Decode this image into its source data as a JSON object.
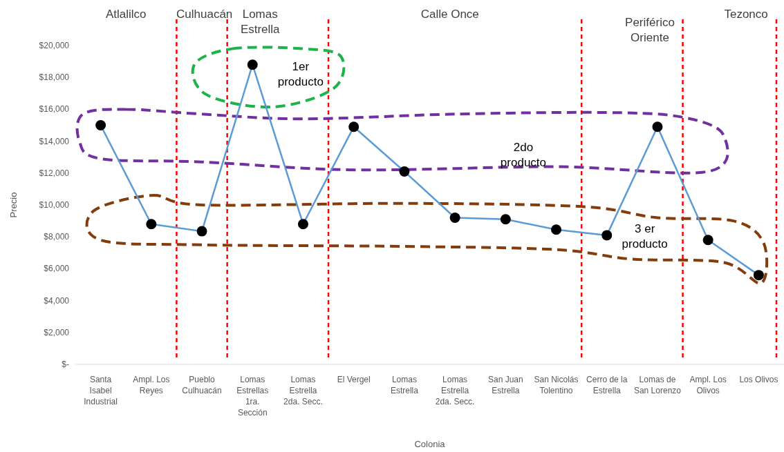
{
  "chart_data": {
    "type": "line",
    "xlabel": "Colonia",
    "ylabel": "Precio",
    "categories": [
      "Santa Isabel Industrial",
      "Ampl. Los Reyes",
      "Pueblo Culhuacán",
      "Lomas Estrellas 1ra. Sección",
      "Lomas Estrella 2da. Secc.",
      "El Vergel",
      "Lomas Estrella",
      "Lomas Estrella 2da. Secc.",
      "San Juan Estrella",
      "San Nicolás Tolentino",
      "Cerro de la Estrella",
      "Lomas de San Lorenzo",
      "Ampl. Los Olivos",
      "Los Olivos"
    ],
    "series": [
      {
        "color": "#5b9bd5",
        "values": [
          15000,
          8800,
          8350,
          18800,
          8800,
          14900,
          12100,
          9200,
          9100,
          8450,
          8100,
          14900,
          7800,
          5600
        ]
      }
    ],
    "marker": "circle",
    "ylim": [
      0,
      20000
    ],
    "yticks": [
      {
        "value": 0,
        "label": "$-"
      },
      {
        "value": 2000,
        "label": "$2,000"
      },
      {
        "value": 4000,
        "label": "$4,000"
      },
      {
        "value": 6000,
        "label": "$6,000"
      },
      {
        "value": 8000,
        "label": "$8,000"
      },
      {
        "value": 10000,
        "label": "$10,000"
      },
      {
        "value": 12000,
        "label": "$12,000"
      },
      {
        "value": 14000,
        "label": "$14,000"
      },
      {
        "value": 16000,
        "label": "$16,000"
      },
      {
        "value": 18000,
        "label": "$18,000"
      },
      {
        "value": 20000,
        "label": "$20,000"
      }
    ],
    "annotations": [
      "Atlalilco",
      "Culhuacán",
      "Lomas Estrella",
      "Calle Once",
      "Periférico Oriente",
      "Tezonco",
      "1er producto",
      "2do producto",
      "3 er producto"
    ]
  }
}
